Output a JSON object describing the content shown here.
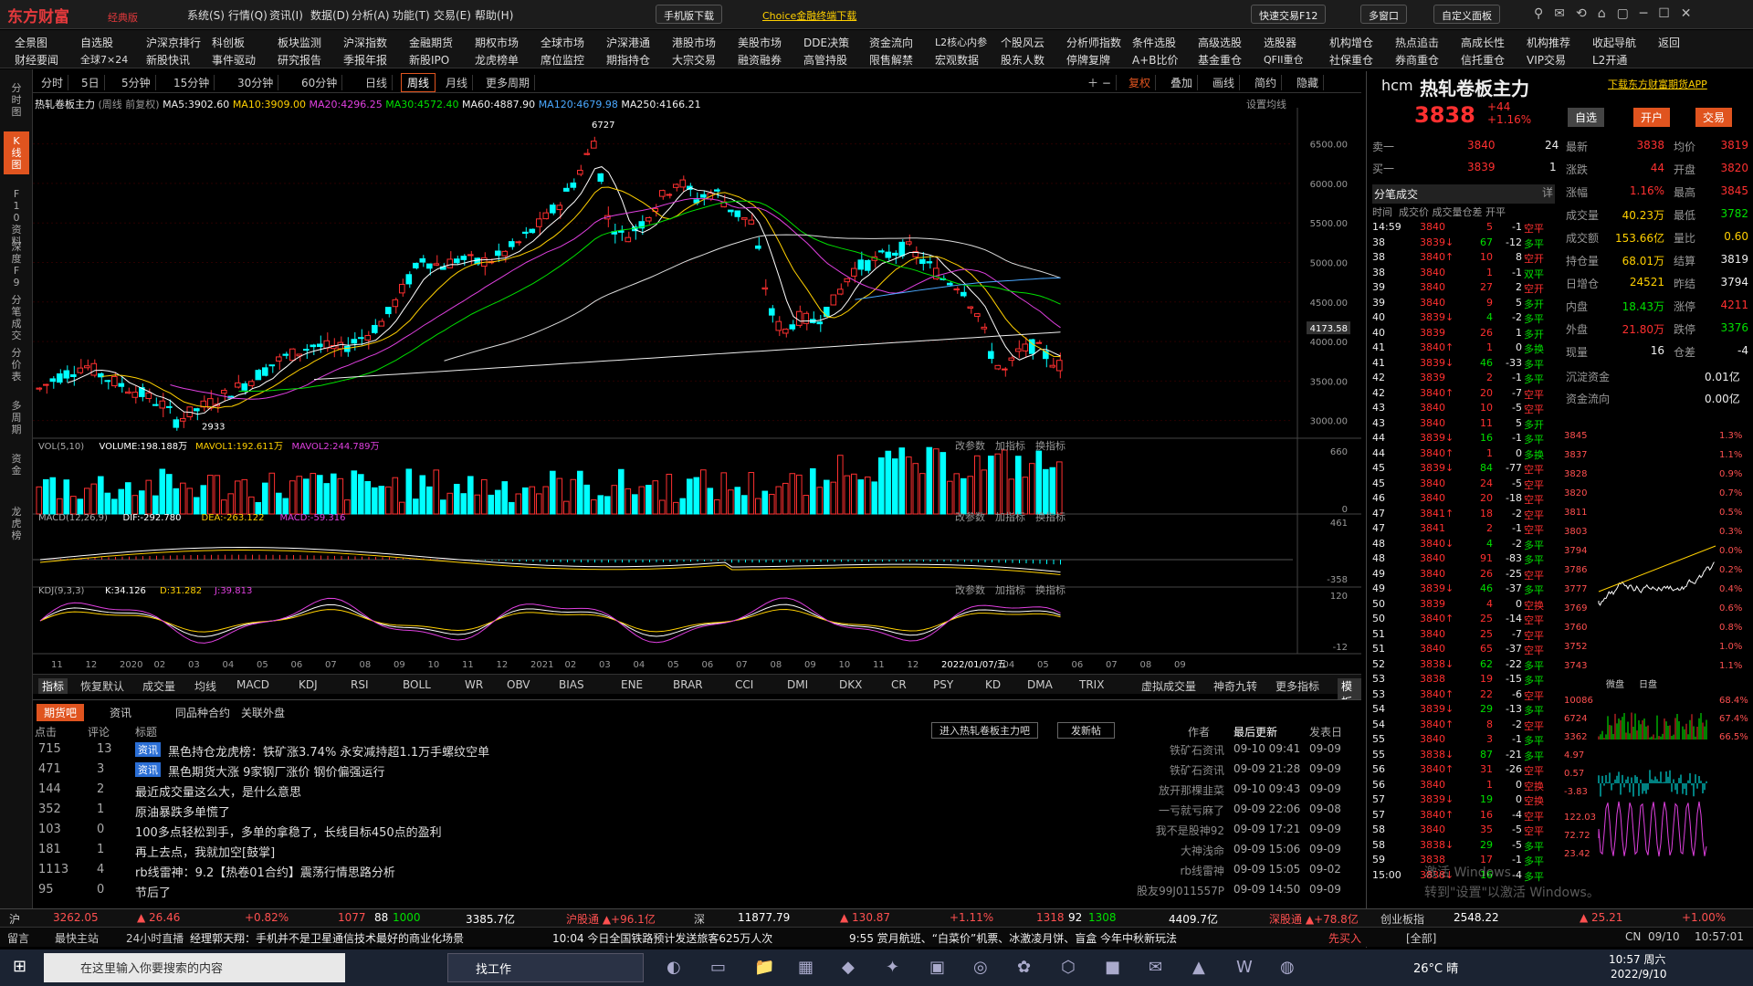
{
  "app": {
    "logo": "东方财富",
    "edition": "经典版",
    "menus": [
      "系统(S)",
      "行情(Q)",
      "资讯(I)",
      "数据(D)",
      "分析(A)",
      "功能(T)",
      "交易(E)",
      "帮助(H)"
    ],
    "phone_download": "手机版下载",
    "choice": "Choice金融终端下载",
    "fast_trade": "快速交易F12",
    "multi_window": "多窗口",
    "custom": "自定义面板"
  },
  "menu_row1": [
    "全景图",
    "自选股",
    "沪深京排行",
    "科创板",
    "板块监测",
    "沪深指数",
    "金融期货",
    "期权市场",
    "全球市场",
    "沪深港通",
    "港股市场",
    "美股市场",
    "DDE决策",
    "资金流向",
    "L2核心内参",
    "个股风云",
    "分析师指数",
    "条件选股",
    "高级选股",
    "选股器",
    "机构增仓",
    "热点追击",
    "高成长性",
    "机构推荐",
    "收起导航",
    "返回"
  ],
  "menu_row2": [
    "财经要闻",
    "全球7×24",
    "新股快讯",
    "事件驱动",
    "研究报告",
    "季报年报",
    "新股IPO",
    "龙虎榜单",
    "席位监控",
    "期指持仓",
    "大宗交易",
    "融资融券",
    "高管持股",
    "限售解禁",
    "宏观数据",
    "股东人数",
    "停牌复牌",
    "A+B比价",
    "基金重仓",
    "QFII重仓",
    "社保重仓",
    "券商重仓",
    "信托重仓",
    "VIP交易",
    "L2开通"
  ],
  "left_tabs": [
    "分时图",
    "K线图",
    "F10资料",
    "深度F9",
    "分笔成交",
    "分价表",
    "多周期",
    "资金",
    "龙虎榜"
  ],
  "periods": [
    "分时",
    "5日",
    "5分钟",
    "15分钟",
    "30分钟",
    "60分钟",
    "日线",
    "周线",
    "月线",
    "更多周期"
  ],
  "period_active": "周线",
  "chart_tools": [
    "复权",
    "叠加",
    "画线",
    "简约",
    "隐藏"
  ],
  "chart_header": {
    "name": "热轧卷板主力",
    "mode": "(周线 前复权)",
    "ma5": "MA5:3902.60",
    "ma10": "MA10:3909.00",
    "ma20": "MA20:4296.25",
    "ma30": "MA30:4572.40",
    "ma60": "MA60:4887.90",
    "ma120": "MA120:4679.98",
    "ma250": "MA250:4166.21",
    "settings": "设置均线"
  },
  "price_axis": [
    "6500.00",
    "6000.00",
    "5500.00",
    "5000.00",
    "4500.00",
    "4000.00",
    "3500.00",
    "3000.00"
  ],
  "price_tag": "4173.58",
  "high_label": "6727",
  "low_label": "2933",
  "vol_header": {
    "name": "VOL(5,10)",
    "volume": "VOLUME:198.188万",
    "mavol1": "MAVOL1:192.611万",
    "mavol2": "MAVOL2:244.789万",
    "axis_top": "660",
    "axis_bot": "0"
  },
  "macd_header": {
    "name": "MACD(12,26,9)",
    "dif": "DIF:-292.780",
    "dea": "DEA:-263.122",
    "macd": "MACD:-59.316",
    "axis_top": "461",
    "axis_bot": "-358"
  },
  "kdj_header": {
    "name": "KDJ(9,3,3)",
    "k": "K:34.126",
    "d": "D:31.282",
    "j": "J:39.813",
    "axis_top": "120",
    "axis_bot": "-12"
  },
  "sub_tools": [
    "改参数",
    "加指标",
    "换指标"
  ],
  "x_axis": [
    "11",
    "12",
    "2020",
    "02",
    "03",
    "04",
    "05",
    "06",
    "07",
    "08",
    "09",
    "10",
    "11",
    "12",
    "2021",
    "02",
    "03",
    "04",
    "05",
    "06",
    "07",
    "08",
    "09",
    "10",
    "11",
    "12",
    "2022/01/07/五",
    "04",
    "05",
    "06",
    "07",
    "08",
    "09"
  ],
  "indicators": [
    "指标",
    "恢复默认",
    "成交量",
    "均线",
    "MACD",
    "KDJ",
    "RSI",
    "BOLL",
    "WR",
    "OBV",
    "BIAS",
    "ENE",
    "BRAR",
    "CCI",
    "DMI",
    "DKX",
    "CR",
    "PSY",
    "KD",
    "DMA",
    "TRIX",
    "虚拟成交量",
    "神奇九转",
    "更多指标",
    "模板"
  ],
  "news_tabs": [
    "期货吧",
    "资讯",
    "同品种合约",
    "关联外盘"
  ],
  "news_cols": {
    "clicks": "点击",
    "comments": "评论",
    "title": "标题",
    "author": "作者",
    "updated": "最后更新",
    "posted": "发表日"
  },
  "news_btns": {
    "enter": "进入热轧卷板主力吧",
    "post": "发新帖"
  },
  "news": [
    {
      "clicks": "715",
      "comments": "13",
      "tag": "资讯",
      "title": "黑色持仓龙虎榜：铁矿涨3.74% 永安减持超1.1万手螺纹空单",
      "author": "铁矿石资讯",
      "updated": "09-10 09:41",
      "posted": "09-09"
    },
    {
      "clicks": "471",
      "comments": "3",
      "tag": "资讯",
      "title": "黑色期货大涨 9家钢厂涨价 钢价偏强运行",
      "author": "铁矿石资讯",
      "updated": "09-09 21:28",
      "posted": "09-09"
    },
    {
      "clicks": "144",
      "comments": "2",
      "tag": "",
      "title": "最近成交量这么大，是什么意思",
      "author": "放开那棵韭菜",
      "updated": "09-10 09:43",
      "posted": "09-09"
    },
    {
      "clicks": "352",
      "comments": "1",
      "tag": "",
      "title": "原油暴跌多单慌了",
      "author": "一亏就亏麻了",
      "updated": "09-09 22:06",
      "posted": "09-08"
    },
    {
      "clicks": "103",
      "comments": "0",
      "tag": "",
      "title": "100多点轻松到手，多单的拿稳了，长线目标450点的盈利",
      "author": "我不是股神92",
      "updated": "09-09 17:21",
      "posted": "09-09"
    },
    {
      "clicks": "181",
      "comments": "1",
      "tag": "",
      "title": "再上去点，我就加空[鼓掌]",
      "author": "大神浅命",
      "updated": "09-09 15:06",
      "posted": "09-09"
    },
    {
      "clicks": "1113",
      "comments": "4",
      "tag": "",
      "title": "rb线雷神：9.2【热卷01合约】震荡行情思路分析",
      "author": "rb线雷神",
      "updated": "09-09 15:05",
      "posted": "09-02"
    },
    {
      "clicks": "95",
      "comments": "0",
      "tag": "",
      "title": "节后了",
      "author": "股友99J011557P",
      "updated": "09-09 14:50",
      "posted": "09-09"
    }
  ],
  "quote": {
    "code": "hcm",
    "name": "热轧卷板主力",
    "price": "3838",
    "change": "+44",
    "pct": "+1.16%",
    "download": "下载东方财富期货APP",
    "btn_fav": "自选",
    "btn_open": "开户",
    "btn_trade": "交易",
    "ask_label": "卖一",
    "ask_price": "3840",
    "ask_vol": "24",
    "bid_label": "买一",
    "bid_price": "3839",
    "bid_vol": "1",
    "stats": [
      {
        "l": "最新",
        "v": "3838",
        "c": "red",
        "l2": "均价",
        "v2": "3819",
        "c2": "red"
      },
      {
        "l": "涨跌",
        "v": "44",
        "c": "red",
        "l2": "开盘",
        "v2": "3820",
        "c2": "red"
      },
      {
        "l": "涨幅",
        "v": "1.16%",
        "c": "red",
        "l2": "最高",
        "v2": "3845",
        "c2": "red"
      },
      {
        "l": "成交量",
        "v": "40.23万",
        "c": "yellow",
        "l2": "最低",
        "v2": "3782",
        "c2": "green"
      },
      {
        "l": "成交额",
        "v": "153.66亿",
        "c": "yellow",
        "l2": "量比",
        "v2": "0.60",
        "c2": "yellow"
      },
      {
        "l": "持仓量",
        "v": "68.01万",
        "c": "yellow",
        "l2": "结算",
        "v2": "3819",
        "c2": "white"
      },
      {
        "l": "日增仓",
        "v": "24521",
        "c": "yellow",
        "l2": "昨结",
        "v2": "3794",
        "c2": "white"
      },
      {
        "l": "内盘",
        "v": "18.43万",
        "c": "green",
        "l2": "涨停",
        "v2": "4211",
        "c2": "red"
      },
      {
        "l": "外盘",
        "v": "21.80万",
        "c": "red",
        "l2": "跌停",
        "v2": "3376",
        "c2": "green"
      },
      {
        "l": "现量",
        "v": "16",
        "c": "white",
        "l2": "仓差",
        "v2": "-4",
        "c2": "white"
      }
    ],
    "fund1_label": "沉淀资金",
    "fund1": "0.01亿",
    "fund2_label": "资金流向",
    "fund2": "0.00亿"
  },
  "ticks_header": {
    "title": "分笔成交",
    "detail": "详",
    "cols": "时间  成交价 成交量仓差 开平"
  },
  "ticks": [
    [
      "14:59",
      "3840",
      "",
      "5",
      "-1",
      "空平"
    ],
    [
      "38",
      "3839",
      "↓",
      "67",
      "-12",
      "多平"
    ],
    [
      "38",
      "3840",
      "↑",
      "10",
      "8",
      "空开"
    ],
    [
      "38",
      "3840",
      "",
      "1",
      "-1",
      "双平"
    ],
    [
      "39",
      "3840",
      "",
      "27",
      "2",
      "空开"
    ],
    [
      "39",
      "3840",
      "",
      "9",
      "5",
      "多开"
    ],
    [
      "40",
      "3839",
      "↓",
      "4",
      "-2",
      "多平"
    ],
    [
      "40",
      "3839",
      "",
      "26",
      "1",
      "多开"
    ],
    [
      "41",
      "3840",
      "↑",
      "1",
      "0",
      "多换"
    ],
    [
      "41",
      "3839",
      "↓",
      "46",
      "-33",
      "多平"
    ],
    [
      "42",
      "3839",
      "",
      "2",
      "-1",
      "多平"
    ],
    [
      "42",
      "3840",
      "↑",
      "20",
      "-7",
      "空平"
    ],
    [
      "43",
      "3840",
      "",
      "10",
      "-5",
      "空平"
    ],
    [
      "43",
      "3840",
      "",
      "11",
      "5",
      "多开"
    ],
    [
      "44",
      "3839",
      "↓",
      "16",
      "-1",
      "多平"
    ],
    [
      "44",
      "3840",
      "↑",
      "1",
      "0",
      "多换"
    ],
    [
      "45",
      "3839",
      "↓",
      "84",
      "-77",
      "空平"
    ],
    [
      "45",
      "3840",
      "",
      "24",
      "-5",
      "空平"
    ],
    [
      "46",
      "3840",
      "",
      "20",
      "-18",
      "空平"
    ],
    [
      "47",
      "3841",
      "↑",
      "18",
      "-2",
      "空平"
    ],
    [
      "47",
      "3841",
      "",
      "2",
      "-1",
      "空平"
    ],
    [
      "48",
      "3840",
      "↓",
      "4",
      "-2",
      "多平"
    ],
    [
      "48",
      "3840",
      "",
      "91",
      "-83",
      "多平"
    ],
    [
      "49",
      "3840",
      "",
      "26",
      "-25",
      "空平"
    ],
    [
      "49",
      "3839",
      "↓",
      "46",
      "-37",
      "多平"
    ],
    [
      "50",
      "3839",
      "",
      "4",
      "0",
      "空换"
    ],
    [
      "50",
      "3840",
      "↑",
      "25",
      "-14",
      "空平"
    ],
    [
      "51",
      "3840",
      "",
      "25",
      "-7",
      "空平"
    ],
    [
      "51",
      "3840",
      "",
      "65",
      "-37",
      "空平"
    ],
    [
      "52",
      "3838",
      "↓",
      "62",
      "-22",
      "多平"
    ],
    [
      "53",
      "3838",
      "",
      "19",
      "-15",
      "多平"
    ],
    [
      "53",
      "3840",
      "↑",
      "22",
      "-6",
      "空平"
    ],
    [
      "54",
      "3839",
      "↓",
      "29",
      "-13",
      "多平"
    ],
    [
      "54",
      "3840",
      "↑",
      "8",
      "-2",
      "空平"
    ],
    [
      "55",
      "3840",
      "",
      "3",
      "-1",
      "多平"
    ],
    [
      "55",
      "3838",
      "↓",
      "87",
      "-21",
      "多平"
    ],
    [
      "56",
      "3840",
      "↑",
      "31",
      "-26",
      "空平"
    ],
    [
      "56",
      "3840",
      "",
      "1",
      "0",
      "空换"
    ],
    [
      "57",
      "3839",
      "↓",
      "19",
      "0",
      "空换"
    ],
    [
      "57",
      "3840",
      "↑",
      "16",
      "-4",
      "空平"
    ],
    [
      "58",
      "3840",
      "",
      "35",
      "-5",
      "空平"
    ],
    [
      "58",
      "3838",
      "↓",
      "29",
      "-5",
      "多平"
    ],
    [
      "59",
      "3838",
      "",
      "17",
      "-1",
      "多平"
    ],
    [
      "15:00",
      "3838",
      "↓",
      "16",
      "-4",
      "多平"
    ]
  ],
  "mini_axis": [
    "3845",
    "3837",
    "3828",
    "3820",
    "3811",
    "3803",
    "3794",
    "3786",
    "3777",
    "3769",
    "3760",
    "3752",
    "3743"
  ],
  "mini_pct": [
    "1.3%",
    "1.1%",
    "0.9%",
    "0.7%",
    "0.5%",
    "0.3%",
    "0.0%",
    "0.2%",
    "0.4%",
    "0.6%",
    "0.8%",
    "1.0%",
    "1.1%"
  ],
  "mini_tabs": [
    "微盘",
    "日盘"
  ],
  "mini_vol_axis": [
    "10086",
    "6724",
    "3362"
  ],
  "mini_vol_pct": [
    "68.4%",
    "67.4%",
    "66.5%"
  ],
  "mini_macd": [
    "4.97",
    "0.57",
    "-3.83"
  ],
  "mini_kdj": [
    "122.03",
    "72.72",
    "23.42"
  ],
  "statusbar": {
    "sh_label": "沪",
    "sh": "3262.05",
    "sh_chg": "▲ 26.46",
    "sh_pct": "+0.82%",
    "sh_up": "1077",
    "sh_flat": "88",
    "sh_down": "1000",
    "sh_amt": "3385.7亿",
    "hgt": "沪股通 ▲+96.1亿",
    "sz_label": "深",
    "sz": "11877.79",
    "sz_chg": "▲ 130.87",
    "sz_pct": "+1.11%",
    "sz_up": "1318",
    "sz_flat": "92",
    "sz_down": "1308",
    "sz_amt": "4409.7亿",
    "sgt": "深股通 ▲+78.8亿",
    "cyb": "创业板指",
    "cyb_v": "2548.22",
    "cyb_chg": "▲ 25.21",
    "cyb_pct": "+1.00%"
  },
  "ticker": {
    "msg": "留言",
    "main": "最快主站",
    "live": "24小时直播",
    "t1": "经理郭天翔：手机并不是卫星通信技术最好的商业化场景",
    "t2": "10:04  今日全国铁路预计发送旅客625万人次",
    "t3": "9:55  赏月航班、“白菜价”机票、冰激凌月饼、盲盒 今年中秋新玩法",
    "buy": "先买入",
    "all": "[全部]",
    "cn": "CN",
    "date": "09/10",
    "time": "10:57:01"
  },
  "taskbar": {
    "search": "在这里输入你要搜索的内容",
    "find": "找工作",
    "weather": "26°C 晴",
    "time": "10:57 周六",
    "date": "2022/9/10"
  },
  "watermark": "激活 Windows\n转到\"设置\"以激活 Windows。"
}
